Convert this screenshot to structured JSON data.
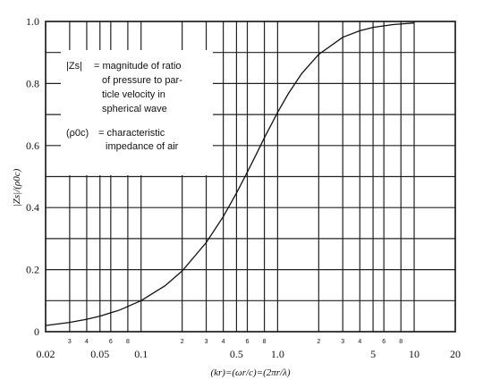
{
  "chart_data": {
    "type": "line",
    "xscale": "log",
    "xlim": [
      0.02,
      20
    ],
    "ylim": [
      0,
      1.0
    ],
    "grid": true,
    "xlabel": "(kr)=(ωr/c)=(2πr/λ)",
    "ylabel": "|Zs|/(ρ0c)",
    "x_ticks": [
      0.02,
      0.05,
      0.1,
      0.5,
      1.0,
      5,
      10,
      20
    ],
    "x_tick_labels": [
      "0.02",
      "0.05",
      "0.1",
      "0.5",
      "1.0",
      "5",
      "10",
      "20"
    ],
    "x_minor_ticks": [
      0.03,
      0.04,
      0.06,
      0.08,
      0.2,
      0.3,
      0.4,
      0.6,
      0.8,
      2,
      3,
      4,
      6,
      8
    ],
    "x_minor_labels": [
      "3",
      "4",
      "6",
      "8",
      "2",
      "3",
      "4",
      "6",
      "8",
      "2",
      "3",
      "4",
      "6",
      "8"
    ],
    "y_ticks": [
      0,
      0.2,
      0.4,
      0.6,
      0.8,
      1.0
    ],
    "y_tick_labels": [
      "0",
      "0.2",
      "0.4",
      "0.6",
      "0.8",
      "1.0"
    ],
    "series": [
      {
        "x": [
          0.02,
          0.03,
          0.04,
          0.05,
          0.07,
          0.1,
          0.15,
          0.2,
          0.3,
          0.4,
          0.5,
          0.6,
          0.7,
          0.8,
          1.0,
          1.2,
          1.5,
          2,
          3,
          4,
          5,
          7,
          10
        ],
        "values": [
          0.02,
          0.03,
          0.04,
          0.05,
          0.07,
          0.1,
          0.148,
          0.196,
          0.287,
          0.371,
          0.447,
          0.514,
          0.573,
          0.625,
          0.707,
          0.768,
          0.832,
          0.894,
          0.949,
          0.97,
          0.981,
          0.99,
          0.995
        ]
      }
    ]
  },
  "legend": {
    "zs_symbol": "|Zs|",
    "zs_line1": "= magnitude of ratio",
    "zs_line2": "of pressure to par-",
    "zs_line3": "ticle velocity in",
    "zs_line4": "spherical wave",
    "rho_symbol": "(ρ0c)",
    "rho_line1": "= characteristic",
    "rho_line2": "impedance of air"
  }
}
